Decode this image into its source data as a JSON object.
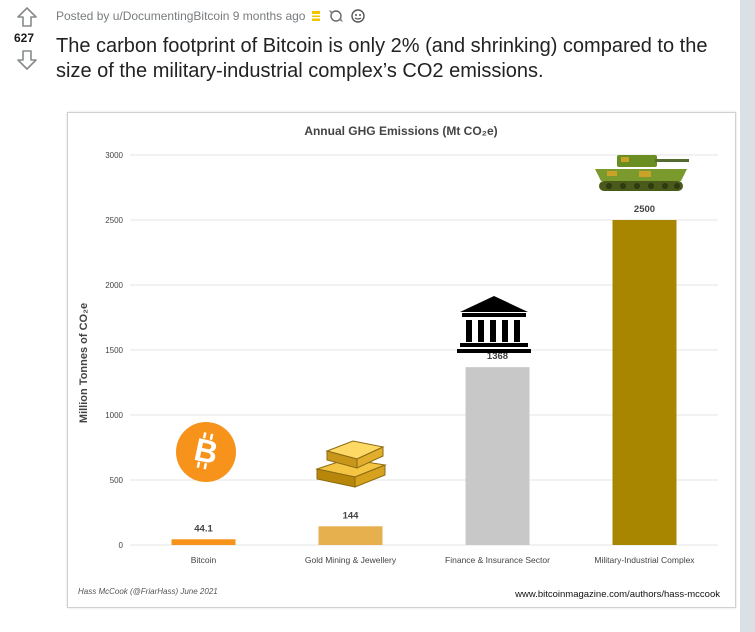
{
  "post": {
    "posted_by": "Posted by u/DocumentingBitcoin 9 months ago",
    "score": "627",
    "title": "The carbon footprint of Bitcoin is only 2% (and shrinking) compared to the size of the military-industrial complex’s CO2 emissions.",
    "icons": [
      "upvote-arrow-icon",
      "downvote-arrow-icon",
      "award-icon",
      "award-icon",
      "award-icon"
    ]
  },
  "chart_data": {
    "type": "bar",
    "title": "Annual GHG Emissions (Mt CO₂e)",
    "ylabel": "Million Tonnes of CO₂e",
    "xlabel": "",
    "categories": [
      "Bitcoin",
      "Gold Mining & Jewellery",
      "Finance & Insurance Sector",
      "Military-Industrial Complex"
    ],
    "values": [
      44.1,
      144,
      1368,
      2500
    ],
    "value_labels": [
      "44.1",
      "144",
      "1368",
      "2500"
    ],
    "ylim": [
      0,
      3000
    ],
    "yticks": [
      "0",
      "500",
      "1000",
      "1500",
      "2000",
      "2500",
      "3000"
    ],
    "colors": [
      "#f7931a",
      "#e6b04e",
      "#c8c8c8",
      "#a88600"
    ],
    "grid": true,
    "category_icons": [
      "bitcoin-logo-icon",
      "gold-bars-icon",
      "bank-building-icon",
      "tank-icon"
    ],
    "footer_left": "Hass McCook (@FriarHass) June 2021",
    "footer_right": "www.bitcoinmagazine.com/authors/hass-mccook"
  }
}
